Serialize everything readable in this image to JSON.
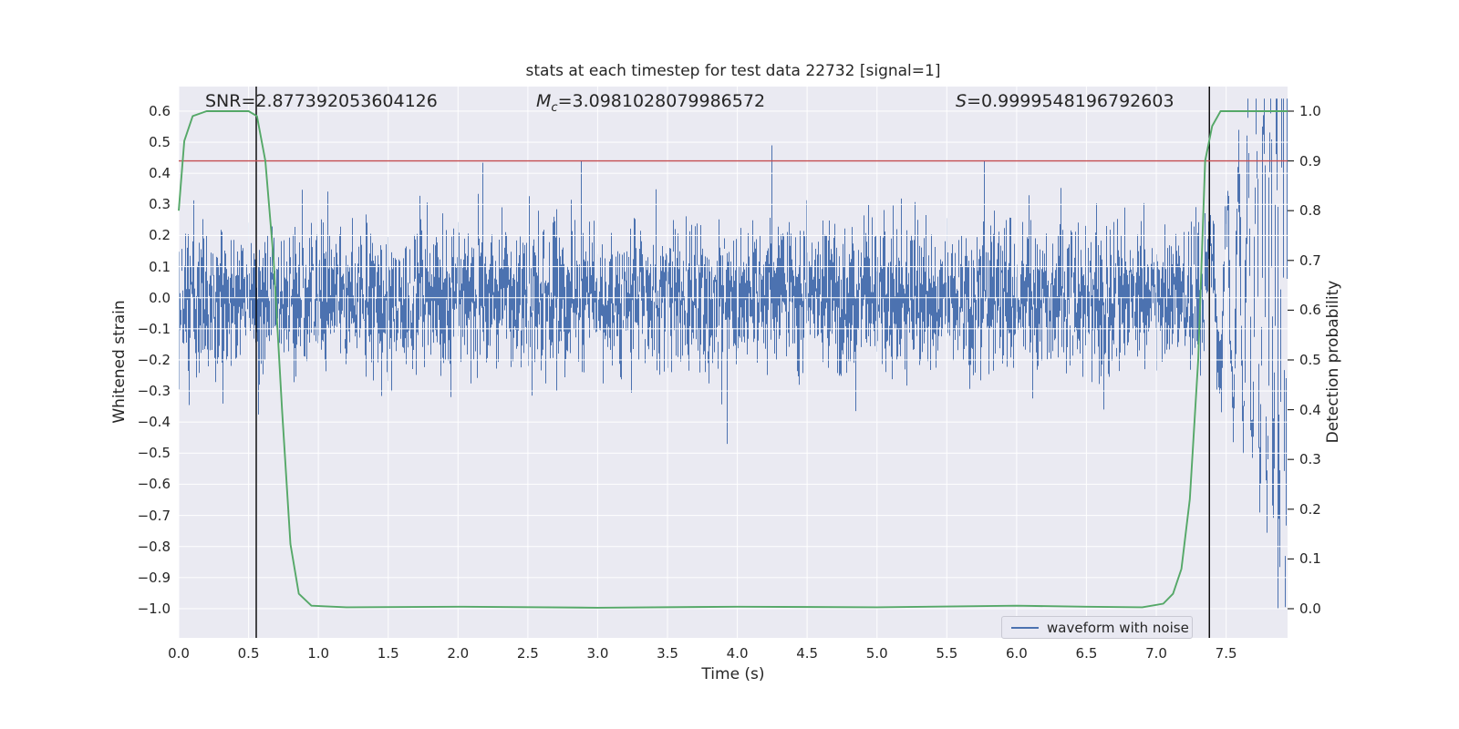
{
  "chart_data": {
    "type": "line",
    "title": "stats at each timestep for test data 22732 [signal=1]",
    "xlabel": "Time (s)",
    "ylabel_left": "Whitened strain",
    "ylabel_right": "Detection probability",
    "xlim": [
      0,
      7.94
    ],
    "strain_ylim": [
      -1.094,
      0.679
    ],
    "prob_ylim": [
      -0.0586,
      1.0494
    ],
    "grid": true,
    "x_tick_values": [
      0.0,
      0.5,
      1.0,
      1.5,
      2.0,
      2.5,
      3.0,
      3.5,
      4.0,
      4.5,
      5.0,
      5.5,
      6.0,
      6.5,
      7.0,
      7.5
    ],
    "x_tick_labels": [
      "0.0",
      "0.5",
      "1.0",
      "1.5",
      "2.0",
      "2.5",
      "3.0",
      "3.5",
      "4.0",
      "4.5",
      "5.0",
      "5.5",
      "6.0",
      "6.5",
      "7.0",
      "7.5"
    ],
    "strain_tick_values": [
      0.6,
      0.5,
      0.4,
      0.3,
      0.2,
      0.1,
      0.0,
      -0.1,
      -0.2,
      -0.3,
      -0.4,
      -0.5,
      -0.6,
      -0.7,
      -0.8,
      -0.9,
      -1.0
    ],
    "strain_tick_labels": [
      "0.6",
      "0.5",
      "0.4",
      "0.3",
      "0.2",
      "0.1",
      "0.0",
      "−0.1",
      "−0.2",
      "−0.3",
      "−0.4",
      "−0.5",
      "−0.6",
      "−0.7",
      "−0.8",
      "−0.9",
      "−1.0"
    ],
    "prob_tick_values": [
      1.0,
      0.9,
      0.8,
      0.7,
      0.6,
      0.5,
      0.4,
      0.3,
      0.2,
      0.1,
      0.0
    ],
    "prob_tick_labels": [
      "1.0",
      "0.9",
      "0.8",
      "0.7",
      "0.6",
      "0.5",
      "0.4",
      "0.3",
      "0.2",
      "0.1",
      "0.0"
    ],
    "threshold_prob": 0.9,
    "event_vlines": [
      0.555,
      7.38
    ],
    "annotations": {
      "snr_text": "SNR=2.877392053604126",
      "mc_var": "M",
      "mc_sub": "c",
      "mc_eq": "=",
      "mc_value": "3.0981028079986572",
      "s_var": "S",
      "s_eq": "=",
      "s_value": "0.9999548196792603"
    },
    "legend": {
      "label": "waveform with noise",
      "position": "lower right"
    },
    "colors": {
      "waveform": "#4c72b0",
      "detection": "#55a868",
      "threshold": "#c44e52",
      "vline": "#000000",
      "axes_bg": "#eaeaf2",
      "grid": "#ffffff",
      "text": "#262626"
    },
    "detection_probability": {
      "x": [
        0,
        0.04,
        0.1,
        0.2,
        0.5,
        0.56,
        0.62,
        0.68,
        0.74,
        0.8,
        0.86,
        0.95,
        1.2,
        2.0,
        3.0,
        4.0,
        5.0,
        6.0,
        6.5,
        6.9,
        7.05,
        7.12,
        7.18,
        7.24,
        7.3,
        7.35,
        7.4,
        7.46,
        7.6,
        7.94
      ],
      "y": [
        0.8,
        0.94,
        0.99,
        1.0,
        1.0,
        0.99,
        0.9,
        0.7,
        0.4,
        0.13,
        0.03,
        0.006,
        0.003,
        0.004,
        0.002,
        0.004,
        0.003,
        0.006,
        0.004,
        0.003,
        0.01,
        0.03,
        0.08,
        0.22,
        0.5,
        0.9,
        0.97,
        1.0,
        1.0,
        1.0
      ]
    },
    "waveform": {
      "description": "whitened gaussian noise over 0-7.94 s with a chirp signal emerging near the right edge",
      "seed": 22732,
      "n_samples": 3800,
      "noise_std": 0.115,
      "chirp": {
        "start": 7.33,
        "end": 7.94,
        "amp_max": 0.9,
        "f0": 4,
        "f1": 26
      },
      "notable_spikes": [
        [
          2.88,
          0.44
        ],
        [
          3.93,
          -0.47
        ],
        [
          4.25,
          0.49
        ],
        [
          5.77,
          0.44
        ],
        [
          7.87,
          -1.0
        ]
      ]
    }
  }
}
